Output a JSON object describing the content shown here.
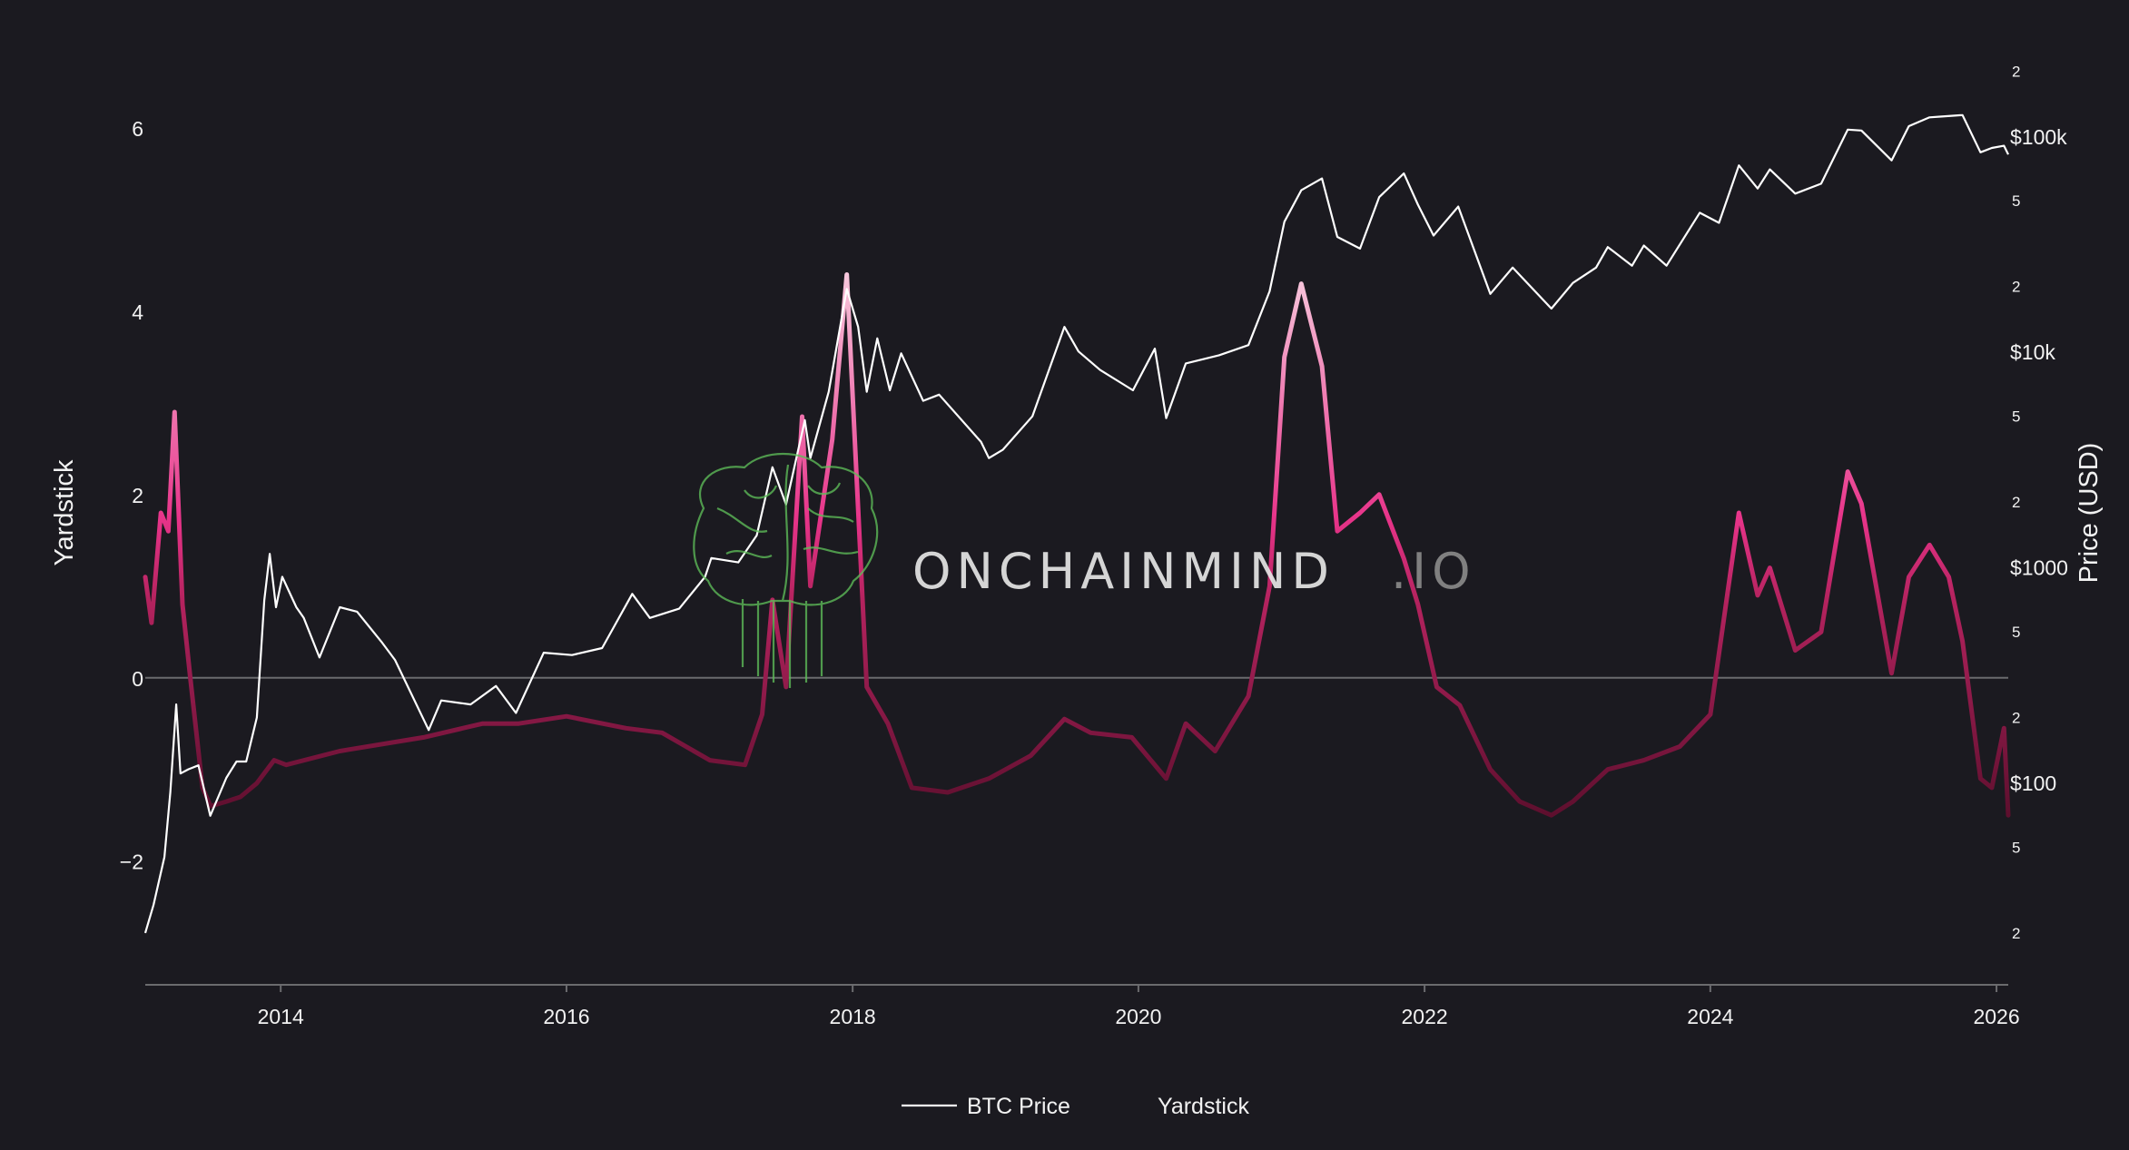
{
  "watermark": {
    "text_main": "ONCHAINMIND",
    "text_suffix": ".IO",
    "logo": "brain-circuit-logo"
  },
  "colors": {
    "background": "#1b1a20",
    "text": "#f2f2f2",
    "price_line": "#ffffff",
    "zero_line": "#6b6b6e",
    "axis_line": "#6b6b6e",
    "yardstick_low": "#5e0f2e",
    "yardstick_mid": "#e8348a",
    "yardstick_high": "#f7c7dc",
    "watermark_main": "#e6e6e6",
    "watermark_suffix": "#8a8a8a",
    "watermark_logo": "#5fbf5a"
  },
  "chart_data": {
    "type": "line",
    "x_axis": {
      "type": "date",
      "range": [
        "2013-01-20",
        "2026-01-31"
      ],
      "tick_labels": [
        "2014",
        "2016",
        "2018",
        "2020",
        "2022",
        "2024",
        "2026"
      ]
    },
    "y_axis_left": {
      "title": "Yardstick",
      "range": [
        -3.35,
        7.0
      ],
      "tick_values": [
        -2,
        0,
        2,
        4,
        6
      ],
      "tick_labels": [
        "−2",
        "0",
        "2",
        "4",
        "6"
      ],
      "zero_line": true
    },
    "y_axis_right": {
      "title": "Price (USD)",
      "scale": "log",
      "range": [
        11.5,
        290000
      ],
      "major_ticks": [
        {
          "value": 100,
          "label": "$100"
        },
        {
          "value": 1000,
          "label": "$1000"
        },
        {
          "value": 10000,
          "label": "$10k"
        },
        {
          "value": 100000,
          "label": "$100k"
        }
      ],
      "minor_ticks": [
        {
          "value": 20,
          "label": "2"
        },
        {
          "value": 50,
          "label": "5"
        },
        {
          "value": 200,
          "label": "2"
        },
        {
          "value": 500,
          "label": "5"
        },
        {
          "value": 2000,
          "label": "2"
        },
        {
          "value": 5000,
          "label": "5"
        },
        {
          "value": 20000,
          "label": "2"
        },
        {
          "value": 50000,
          "label": "5"
        },
        {
          "value": 200000,
          "label": "2"
        }
      ]
    },
    "legend": {
      "placement": "bottom-center",
      "entries": [
        "BTC Price",
        "Yardstick"
      ]
    },
    "grid": false,
    "series": [
      {
        "name": "BTC Price",
        "axis": "right",
        "points": [
          [
            "2013-01-20",
            20
          ],
          [
            "2013-02-10",
            27
          ],
          [
            "2013-03-10",
            45
          ],
          [
            "2013-03-25",
            90
          ],
          [
            "2013-04-09",
            230
          ],
          [
            "2013-04-20",
            110
          ],
          [
            "2013-05-10",
            115
          ],
          [
            "2013-06-05",
            120
          ],
          [
            "2013-07-05",
            70
          ],
          [
            "2013-08-15",
            105
          ],
          [
            "2013-09-10",
            125
          ],
          [
            "2013-10-05",
            125
          ],
          [
            "2013-11-01",
            200
          ],
          [
            "2013-11-20",
            700
          ],
          [
            "2013-12-04",
            1150
          ],
          [
            "2013-12-20",
            650
          ],
          [
            "2014-01-05",
            900
          ],
          [
            "2014-02-10",
            650
          ],
          [
            "2014-03-01",
            580
          ],
          [
            "2014-04-10",
            380
          ],
          [
            "2014-06-01",
            650
          ],
          [
            "2014-07-15",
            620
          ],
          [
            "2014-09-15",
            450
          ],
          [
            "2014-10-20",
            370
          ],
          [
            "2015-01-14",
            175
          ],
          [
            "2015-02-15",
            240
          ],
          [
            "2015-05-01",
            230
          ],
          [
            "2015-07-05",
            280
          ],
          [
            "2015-08-25",
            210
          ],
          [
            "2015-11-04",
            400
          ],
          [
            "2016-01-15",
            390
          ],
          [
            "2016-04-01",
            420
          ],
          [
            "2016-06-17",
            750
          ],
          [
            "2016-08-01",
            580
          ],
          [
            "2016-10-15",
            640
          ],
          [
            "2016-12-20",
            900
          ],
          [
            "2017-01-05",
            1100
          ],
          [
            "2017-03-15",
            1050
          ],
          [
            "2017-05-01",
            1400
          ],
          [
            "2017-06-10",
            2900
          ],
          [
            "2017-07-15",
            1950
          ],
          [
            "2017-09-01",
            4800
          ],
          [
            "2017-09-15",
            3200
          ],
          [
            "2017-11-01",
            6500
          ],
          [
            "2017-12-17",
            19500
          ],
          [
            "2018-01-15",
            13000
          ],
          [
            "2018-02-06",
            6500
          ],
          [
            "2018-03-05",
            11500
          ],
          [
            "2018-04-06",
            6600
          ],
          [
            "2018-05-05",
            9800
          ],
          [
            "2018-06-30",
            5900
          ],
          [
            "2018-08-10",
            6300
          ],
          [
            "2018-11-25",
            3800
          ],
          [
            "2018-12-15",
            3200
          ],
          [
            "2019-01-20",
            3500
          ],
          [
            "2019-04-05",
            5000
          ],
          [
            "2019-06-26",
            13000
          ],
          [
            "2019-08-01",
            10000
          ],
          [
            "2019-09-25",
            8200
          ],
          [
            "2019-12-18",
            6600
          ],
          [
            "2020-02-12",
            10300
          ],
          [
            "2020-03-12",
            4900
          ],
          [
            "2020-05-01",
            8800
          ],
          [
            "2020-07-25",
            9600
          ],
          [
            "2020-10-08",
            10700
          ],
          [
            "2020-12-01",
            19000
          ],
          [
            "2021-01-08",
            40000
          ],
          [
            "2021-02-20",
            56000
          ],
          [
            "2021-04-14",
            63500
          ],
          [
            "2021-05-23",
            34000
          ],
          [
            "2021-07-20",
            30000
          ],
          [
            "2021-09-07",
            52000
          ],
          [
            "2021-11-09",
            67000
          ],
          [
            "2021-12-15",
            48000
          ],
          [
            "2022-01-24",
            34500
          ],
          [
            "2022-03-28",
            47000
          ],
          [
            "2022-06-18",
            18500
          ],
          [
            "2022-08-14",
            24500
          ],
          [
            "2022-11-21",
            15800
          ],
          [
            "2023-01-15",
            20800
          ],
          [
            "2023-03-15",
            24500
          ],
          [
            "2023-04-14",
            30500
          ],
          [
            "2023-06-15",
            25000
          ],
          [
            "2023-07-15",
            31000
          ],
          [
            "2023-09-11",
            25000
          ],
          [
            "2023-12-05",
            44000
          ],
          [
            "2024-01-23",
            39500
          ],
          [
            "2024-03-14",
            73000
          ],
          [
            "2024-05-01",
            57000
          ],
          [
            "2024-06-01",
            70000
          ],
          [
            "2024-08-05",
            54000
          ],
          [
            "2024-10-10",
            60000
          ],
          [
            "2024-12-17",
            107000
          ],
          [
            "2025-01-21",
            106000
          ],
          [
            "2025-04-08",
            77000
          ],
          [
            "2025-05-22",
            111000
          ],
          [
            "2025-07-14",
            122000
          ],
          [
            "2025-08-14",
            123000
          ],
          [
            "2025-10-06",
            125000
          ],
          [
            "2025-11-21",
            84000
          ],
          [
            "2025-12-20",
            88000
          ],
          [
            "2026-01-20",
            90000
          ],
          [
            "2026-01-31",
            82000
          ]
        ]
      },
      {
        "name": "Yardstick",
        "axis": "left",
        "points": [
          [
            "2013-01-20",
            1.1
          ],
          [
            "2013-02-05",
            0.6
          ],
          [
            "2013-03-01",
            1.8
          ],
          [
            "2013-03-20",
            1.6
          ],
          [
            "2013-04-05",
            2.9
          ],
          [
            "2013-04-25",
            0.8
          ],
          [
            "2013-05-15",
            0.0
          ],
          [
            "2013-06-15",
            -1.2
          ],
          [
            "2013-07-06",
            -1.4
          ],
          [
            "2013-08-15",
            -1.35
          ],
          [
            "2013-09-20",
            -1.3
          ],
          [
            "2013-11-01",
            -1.15
          ],
          [
            "2013-12-15",
            -0.9
          ],
          [
            "2014-01-15",
            -0.95
          ],
          [
            "2014-06-01",
            -0.8
          ],
          [
            "2015-01-01",
            -0.65
          ],
          [
            "2015-06-01",
            -0.5
          ],
          [
            "2015-09-01",
            -0.5
          ],
          [
            "2016-01-01",
            -0.42
          ],
          [
            "2016-06-01",
            -0.55
          ],
          [
            "2016-09-01",
            -0.6
          ],
          [
            "2017-01-01",
            -0.9
          ],
          [
            "2017-04-01",
            -0.95
          ],
          [
            "2017-05-15",
            -0.4
          ],
          [
            "2017-06-10",
            0.85
          ],
          [
            "2017-07-15",
            -0.1
          ],
          [
            "2017-08-25",
            2.85
          ],
          [
            "2017-09-15",
            1.0
          ],
          [
            "2017-11-10",
            2.6
          ],
          [
            "2017-12-17",
            4.4
          ],
          [
            "2018-02-06",
            -0.1
          ],
          [
            "2018-04-01",
            -0.5
          ],
          [
            "2018-06-01",
            -1.2
          ],
          [
            "2018-09-01",
            -1.25
          ],
          [
            "2018-12-15",
            -1.1
          ],
          [
            "2019-04-01",
            -0.85
          ],
          [
            "2019-06-26",
            -0.45
          ],
          [
            "2019-09-01",
            -0.6
          ],
          [
            "2019-12-15",
            -0.65
          ],
          [
            "2020-03-12",
            -1.1
          ],
          [
            "2020-05-01",
            -0.5
          ],
          [
            "2020-07-15",
            -0.8
          ],
          [
            "2020-10-08",
            -0.2
          ],
          [
            "2020-12-01",
            1.0
          ],
          [
            "2021-01-08",
            3.5
          ],
          [
            "2021-02-20",
            4.3
          ],
          [
            "2021-04-14",
            3.4
          ],
          [
            "2021-05-23",
            1.6
          ],
          [
            "2021-07-20",
            1.8
          ],
          [
            "2021-09-07",
            2.0
          ],
          [
            "2021-11-09",
            1.3
          ],
          [
            "2021-12-15",
            0.8
          ],
          [
            "2022-02-01",
            -0.1
          ],
          [
            "2022-04-01",
            -0.3
          ],
          [
            "2022-06-18",
            -1.0
          ],
          [
            "2022-09-01",
            -1.35
          ],
          [
            "2022-11-21",
            -1.5
          ],
          [
            "2023-01-15",
            -1.35
          ],
          [
            "2023-04-14",
            -1.0
          ],
          [
            "2023-07-15",
            -0.9
          ],
          [
            "2023-10-15",
            -0.75
          ],
          [
            "2024-01-01",
            -0.4
          ],
          [
            "2024-03-14",
            1.8
          ],
          [
            "2024-05-01",
            0.9
          ],
          [
            "2024-06-01",
            1.2
          ],
          [
            "2024-08-05",
            0.3
          ],
          [
            "2024-10-10",
            0.5
          ],
          [
            "2024-12-17",
            2.25
          ],
          [
            "2025-01-21",
            1.9
          ],
          [
            "2025-04-08",
            0.05
          ],
          [
            "2025-05-22",
            1.1
          ],
          [
            "2025-07-14",
            1.45
          ],
          [
            "2025-09-01",
            1.1
          ],
          [
            "2025-10-06",
            0.4
          ],
          [
            "2025-11-21",
            -1.1
          ],
          [
            "2025-12-20",
            -1.2
          ],
          [
            "2026-01-20",
            -0.55
          ],
          [
            "2026-01-31",
            -1.5
          ]
        ]
      }
    ]
  }
}
